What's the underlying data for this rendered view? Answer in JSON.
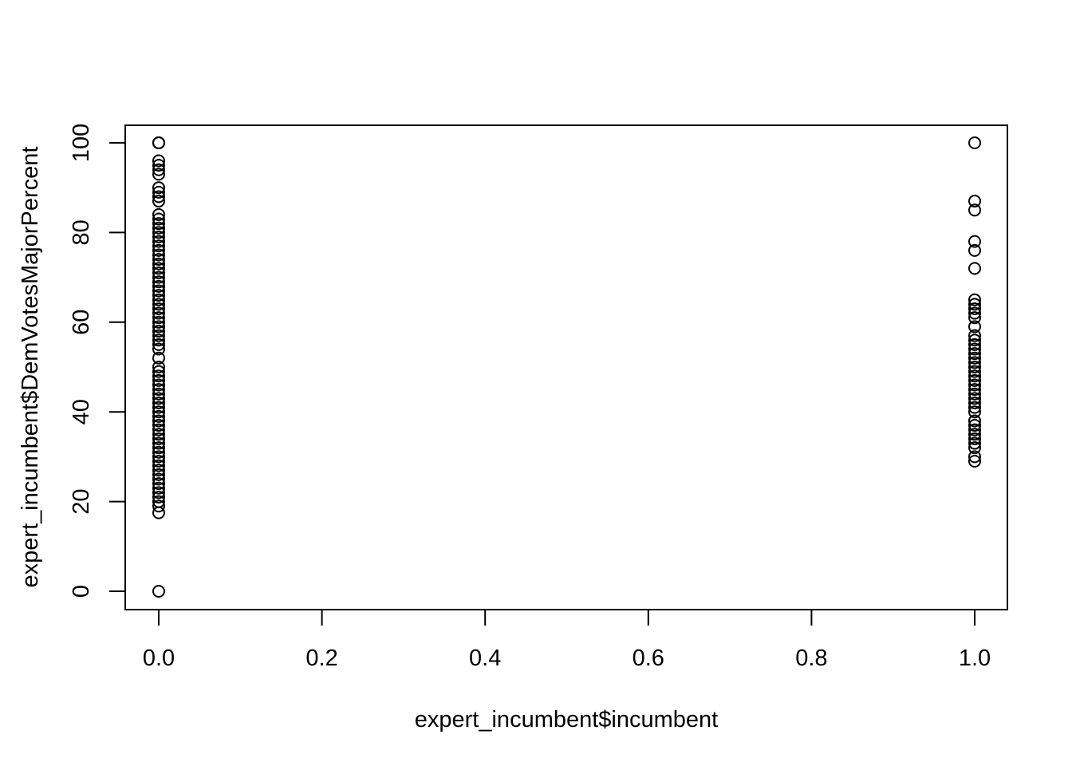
{
  "chart_data": {
    "type": "scatter",
    "title": "",
    "xlabel": "expert_incumbent$incumbent",
    "ylabel": "expert_incumbent$DemVotesMajorPercent",
    "xlim": [
      0,
      1
    ],
    "ylim": [
      0,
      100
    ],
    "x_ticks": [
      "0.0",
      "0.2",
      "0.4",
      "0.6",
      "0.8",
      "1.0"
    ],
    "y_ticks": [
      "0",
      "20",
      "40",
      "60",
      "80",
      "100"
    ],
    "grid": false,
    "legend": "none",
    "marker": "open-circle",
    "series": [
      {
        "x": 0,
        "values": [
          100,
          100,
          100,
          96,
          95,
          94,
          93,
          90,
          89,
          88,
          87,
          84,
          83,
          82,
          81,
          80,
          79,
          78,
          77,
          76,
          75,
          74,
          73,
          72,
          71,
          70,
          69,
          68,
          67,
          66,
          65,
          64,
          63,
          62,
          61,
          60,
          59,
          58,
          57,
          56,
          55,
          54,
          52,
          50,
          49,
          48,
          47,
          46,
          45,
          44,
          43,
          42,
          41,
          40,
          39,
          38,
          37,
          36,
          35,
          34,
          33,
          32,
          31,
          30,
          29,
          28,
          27,
          26,
          25,
          24,
          23,
          22,
          21,
          20,
          19,
          17.5,
          0
        ]
      },
      {
        "x": 1,
        "values": [
          100,
          87,
          85,
          78,
          76,
          72,
          65,
          64,
          63,
          62,
          61,
          59,
          57,
          56,
          55,
          54,
          53,
          52,
          51,
          50,
          49,
          48,
          47,
          46,
          45,
          44,
          43,
          42,
          41,
          40,
          38,
          37,
          36,
          35,
          34,
          33,
          32,
          30,
          29
        ]
      }
    ]
  }
}
